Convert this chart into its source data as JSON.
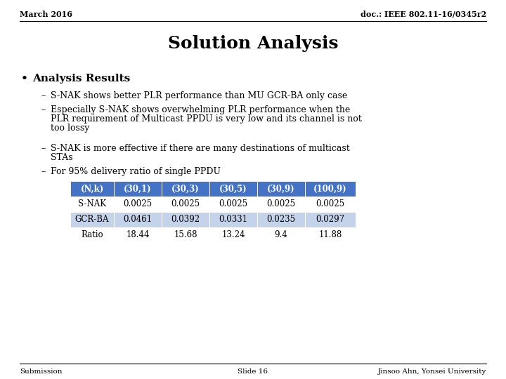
{
  "top_left": "March 2016",
  "top_right": "doc.: IEEE 802.11-16/0345r2",
  "title": "Solution Analysis",
  "bullet_header": "Analysis Results",
  "bullet0": "S-NAK shows better PLR performance than MU GCR-BA only case",
  "bullet1_line1": "Especially S-NAK shows overwhelming PLR performance when the",
  "bullet1_line2": "PLR requirement of Multicast PPDU is very low and its channel is not",
  "bullet1_line3": "too lossy",
  "bullet2_line1": "S-NAK is more effective if there are many destinations of multicast",
  "bullet2_line2": "STAs",
  "bullet3": "For 95% delivery ratio of single PPDU",
  "table_headers": [
    "(N,k)",
    "(30,1)",
    "(30,3)",
    "(30,5)",
    "(30,9)",
    "(100,9)"
  ],
  "table_rows": [
    [
      "S-NAK",
      "0.0025",
      "0.0025",
      "0.0025",
      "0.0025",
      "0.0025"
    ],
    [
      "GCR-BA",
      "0.0461",
      "0.0392",
      "0.0331",
      "0.0235",
      "0.0297"
    ],
    [
      "Ratio",
      "18.44",
      "15.68",
      "13.24",
      "9.4",
      "11.88"
    ]
  ],
  "header_bg": "#4472C4",
  "header_text_color": "#FFFFFF",
  "row_bg_light": "#C5D3EA",
  "row_bg_white": "#FFFFFF",
  "footer_left": "Submission",
  "footer_center": "Slide 16",
  "footer_right": "Jinsoo Ahn, Yonsei University",
  "bg_color": "#FFFFFF",
  "text_color": "#000000",
  "line_color": "#000000"
}
